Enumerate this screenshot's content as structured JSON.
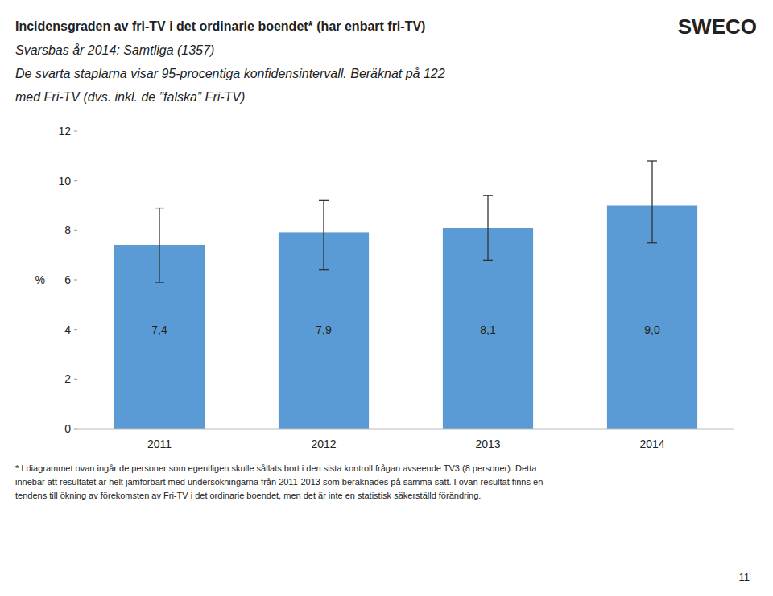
{
  "chart_data": {
    "type": "bar",
    "title": "Incidensgraden av fri-TV i det ordinarie boendet* (har enbart fri-TV)",
    "subtitle": [
      "Svarsbas år 2014: Samtliga (1357)",
      "De svarta staplarna visar 95-procentiga konfidensintervall.  Beräknat på 122",
      "med Fri-TV (dvs. inkl. de ”falska” Fri-TV)"
    ],
    "logo_text": "SWECO",
    "categories": [
      "2011",
      "2012",
      "2013",
      "2014"
    ],
    "values": [
      7.4,
      7.9,
      8.1,
      9.0
    ],
    "value_labels": [
      "7,4",
      "7,9",
      "8,1",
      "9,0"
    ],
    "data_labels": true,
    "error_lower": [
      1.5,
      1.5,
      1.3,
      1.5
    ],
    "error_upper": [
      1.5,
      1.3,
      1.3,
      1.8
    ],
    "color": "#5B9BD5",
    "error_color": "#333333",
    "ylabel": "%",
    "ylim": [
      0,
      12
    ],
    "yticks": [
      0,
      2,
      4,
      6,
      8,
      10,
      12
    ],
    "grid": false,
    "footnote": [
      "* I diagrammet ovan ingår de personer som egentligen skulle sållats bort i den sista kontroll frågan avseende TV3 (8 personer). Detta",
      "innebär att resultatet är helt jämförbart med undersökningarna från 2011-2013 som beräknades på samma sätt. I ovan resultat finns en",
      "tendens till ökning av förekomsten av Fri-TV i det ordinarie boendet, men det är inte en statistisk säkerställd förändring."
    ],
    "page_number": "11"
  }
}
